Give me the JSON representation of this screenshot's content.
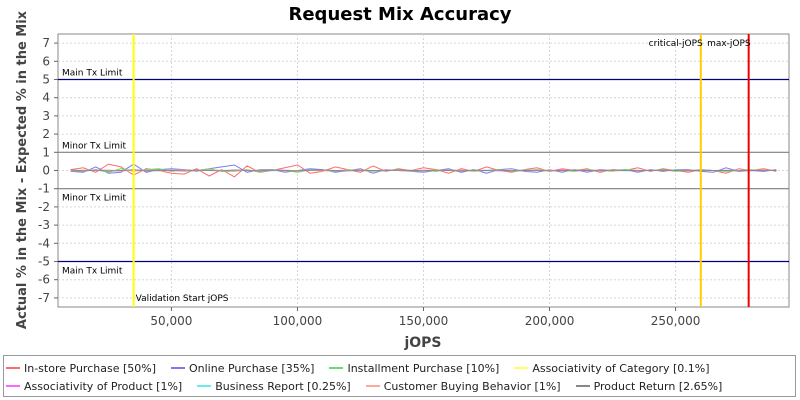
{
  "chart_data": {
    "type": "line",
    "title": "Request Mix Accuracy",
    "xlabel": "jOPS",
    "ylabel": "Actual % in the Mix - Expected % in the Mix",
    "xlim": [
      5000,
      295000
    ],
    "ylim": [
      -7.5,
      7.5
    ],
    "x_ticks": [
      50000,
      100000,
      150000,
      200000,
      250000
    ],
    "x_tick_labels": [
      "50,000",
      "100,000",
      "150,000",
      "200,000",
      "250,000"
    ],
    "y_ticks": [
      -7,
      -6,
      -5,
      -4,
      -3,
      -2,
      -1,
      0,
      1,
      2,
      3,
      4,
      5,
      6,
      7
    ],
    "grid": true,
    "legend_position": "bottom",
    "x": [
      10000,
      15000,
      20000,
      25000,
      30000,
      35000,
      40000,
      45000,
      50000,
      55000,
      60000,
      65000,
      70000,
      75000,
      80000,
      85000,
      90000,
      95000,
      100000,
      105000,
      110000,
      115000,
      120000,
      125000,
      130000,
      135000,
      140000,
      145000,
      150000,
      155000,
      160000,
      165000,
      170000,
      175000,
      180000,
      185000,
      190000,
      195000,
      200000,
      205000,
      210000,
      215000,
      220000,
      225000,
      230000,
      235000,
      240000,
      245000,
      250000,
      255000,
      260000,
      265000,
      270000,
      275000,
      280000,
      285000,
      290000
    ],
    "series": [
      {
        "name": "In-store Purchase [50%]",
        "color": "#ff6b6b",
        "values": [
          0.05,
          0.15,
          -0.1,
          0.35,
          0.2,
          -0.25,
          0.1,
          0.0,
          -0.15,
          -0.2,
          0.1,
          -0.3,
          0.05,
          -0.35,
          0.25,
          -0.1,
          0.0,
          0.15,
          0.3,
          -0.15,
          -0.05,
          0.2,
          0.05,
          -0.1,
          0.25,
          -0.05,
          0.1,
          0.0,
          0.15,
          0.05,
          -0.15,
          0.1,
          -0.05,
          0.2,
          0.0,
          -0.1,
          0.05,
          0.15,
          -0.05,
          0.1,
          0.0,
          0.1,
          -0.1,
          0.05,
          0.0,
          0.15,
          -0.05,
          0.1,
          0.0,
          -0.1,
          0.05,
          0.0,
          -0.15,
          0.1,
          0.0,
          0.1,
          -0.05
        ]
      },
      {
        "name": "Online Purchase [35%]",
        "color": "#7b7bef",
        "values": [
          -0.05,
          -0.1,
          0.2,
          -0.15,
          -0.1,
          0.35,
          -0.1,
          0.05,
          0.1,
          0.05,
          -0.05,
          0.1,
          0.2,
          0.3,
          -0.1,
          0.05,
          0.05,
          -0.1,
          0.0,
          0.1,
          0.05,
          -0.1,
          0.0,
          0.1,
          -0.15,
          0.05,
          0.0,
          -0.05,
          -0.1,
          0.0,
          0.1,
          -0.1,
          0.05,
          -0.15,
          0.05,
          0.1,
          -0.05,
          -0.1,
          0.05,
          -0.1,
          0.05,
          -0.1,
          0.05,
          0.0,
          0.05,
          -0.1,
          0.05,
          -0.05,
          0.05,
          0.05,
          -0.05,
          -0.1,
          0.15,
          -0.05,
          0.0,
          -0.05,
          0.05
        ]
      },
      {
        "name": "Installment Purchase [10%]",
        "color": "#66dd66",
        "values": [
          0.0,
          -0.05,
          0.05,
          -0.1,
          0.1,
          -0.05,
          0.05,
          0.1,
          -0.05,
          0.05,
          0.0,
          0.1,
          -0.05,
          -0.05,
          0.05,
          -0.1,
          0.05,
          0.0,
          -0.1,
          0.05,
          0.0,
          -0.05,
          0.05,
          0.0,
          -0.05,
          0.0,
          0.05,
          -0.05,
          0.0,
          -0.05,
          0.05,
          0.0,
          -0.05,
          0.0,
          0.05,
          -0.05,
          0.0,
          0.05,
          0.0,
          0.0,
          -0.05,
          0.05,
          0.0,
          -0.05,
          0.05,
          0.0,
          0.0,
          0.05,
          -0.05,
          0.0,
          0.05,
          0.0,
          -0.05,
          0.0,
          0.05,
          0.0,
          0.0
        ]
      },
      {
        "name": "Associativity of Category [0.1%]",
        "color": "#ffff66",
        "values": [
          0.0,
          0.0,
          0.01,
          0.0,
          0.0,
          -0.01,
          0.0,
          0.0,
          0.01,
          0.0,
          0.0,
          0.0,
          -0.01,
          0.0,
          0.0,
          0.01,
          0.0,
          0.0,
          0.0,
          0.0,
          -0.01,
          0.0,
          0.0,
          0.01,
          0.0,
          0.0,
          0.0,
          0.0,
          0.0,
          0.01,
          0.0,
          0.0,
          -0.01,
          0.0,
          0.0,
          0.0,
          0.0,
          0.01,
          0.0,
          0.0,
          0.0,
          0.0,
          0.0,
          -0.01,
          0.0,
          0.0,
          0.0,
          0.0,
          0.01,
          0.0,
          0.0,
          0.0,
          0.0,
          0.0,
          0.0,
          0.0,
          0.0
        ]
      },
      {
        "name": "Associativity of Product [1%]",
        "color": "#ff66ff",
        "values": [
          0.02,
          -0.02,
          0.03,
          0.0,
          -0.03,
          0.02,
          0.01,
          -0.02,
          0.0,
          0.03,
          -0.01,
          0.02,
          -0.02,
          0.01,
          0.0,
          -0.03,
          0.02,
          0.01,
          -0.01,
          0.0,
          0.02,
          -0.02,
          0.01,
          0.0,
          -0.01,
          0.02,
          0.0,
          -0.02,
          0.01,
          0.0,
          0.02,
          -0.01,
          0.0,
          0.01,
          -0.02,
          0.0,
          0.01,
          0.0,
          -0.01,
          0.02,
          0.0,
          -0.01,
          0.01,
          0.0,
          0.0,
          -0.01,
          0.01,
          0.0,
          0.0,
          0.01,
          -0.01,
          0.0,
          0.01,
          0.0,
          -0.01,
          0.0,
          0.0
        ]
      },
      {
        "name": "Business Report [0.25%]",
        "color": "#66eeee",
        "values": [
          0.0,
          0.01,
          0.0,
          -0.01,
          0.0,
          0.0,
          0.01,
          0.0,
          0.0,
          -0.01,
          0.0,
          0.0,
          0.01,
          0.0,
          0.0,
          0.0,
          -0.01,
          0.0,
          0.0,
          0.01,
          0.0,
          0.0,
          0.0,
          0.0,
          -0.01,
          0.0,
          0.0,
          0.01,
          0.0,
          0.0,
          0.0,
          0.0,
          0.0,
          -0.01,
          0.0,
          0.0,
          0.01,
          0.0,
          0.0,
          0.0,
          0.0,
          0.0,
          0.0,
          0.0,
          -0.01,
          0.0,
          0.0,
          0.0,
          0.01,
          0.0,
          0.0,
          0.0,
          0.0,
          0.0,
          0.0,
          0.0,
          0.0
        ]
      },
      {
        "name": "Customer Buying Behavior [1%]",
        "color": "#ffaa99",
        "values": [
          -0.02,
          0.02,
          0.0,
          0.03,
          -0.02,
          0.01,
          0.0,
          -0.03,
          0.02,
          0.0,
          -0.01,
          0.02,
          0.0,
          -0.02,
          0.01,
          0.0,
          0.02,
          -0.01,
          0.0,
          0.01,
          -0.02,
          0.0,
          0.02,
          0.0,
          -0.01,
          0.01,
          0.0,
          -0.02,
          0.01,
          0.0,
          0.0,
          0.02,
          -0.01,
          0.0,
          0.01,
          0.0,
          -0.01,
          0.0,
          0.02,
          -0.01,
          0.0,
          0.01,
          0.0,
          -0.01,
          0.0,
          0.01,
          0.0,
          0.0,
          -0.01,
          0.0,
          0.01,
          0.0,
          0.0,
          0.0,
          0.01,
          0.0,
          0.0
        ]
      },
      {
        "name": "Product Return [2.65%]",
        "color": "#888888",
        "values": [
          0.03,
          -0.02,
          0.02,
          -0.03,
          0.0,
          0.04,
          -0.02,
          0.01,
          0.0,
          -0.03,
          0.02,
          0.0,
          -0.02,
          0.03,
          0.0,
          -0.01,
          0.02,
          0.0,
          -0.02,
          0.01,
          0.03,
          0.0,
          -0.02,
          0.01,
          0.0,
          -0.01,
          0.02,
          0.0,
          -0.01,
          0.02,
          0.0,
          -0.02,
          0.01,
          0.0,
          0.02,
          -0.01,
          0.0,
          0.01,
          -0.02,
          0.0,
          0.01,
          0.0,
          -0.01,
          0.02,
          0.0,
          -0.01,
          0.0,
          0.01,
          0.0,
          -0.01,
          0.01,
          0.0,
          0.0,
          -0.01,
          0.0,
          0.01,
          0.0
        ]
      }
    ],
    "limit_lines": [
      {
        "label": "Main Tx Limit",
        "y": 5,
        "color": "#000080"
      },
      {
        "label": "Minor Tx Limit",
        "y": 1,
        "color": "#808080"
      },
      {
        "label": "Minor Tx Limit",
        "y": -1,
        "color": "#808080"
      },
      {
        "label": "Main Tx Limit",
        "y": -5,
        "color": "#000080"
      }
    ],
    "marker_lines": [
      {
        "label": "Validation Start jOPS",
        "x": 35000,
        "color": "#ffff00",
        "label_pos": "bottom"
      },
      {
        "label": "critical-jOPS",
        "x": 260000,
        "color": "#ffcc00",
        "label_pos": "top"
      },
      {
        "label": "max-jOPS",
        "x": 279000,
        "color": "#ee0000",
        "label_pos": "top"
      }
    ]
  }
}
